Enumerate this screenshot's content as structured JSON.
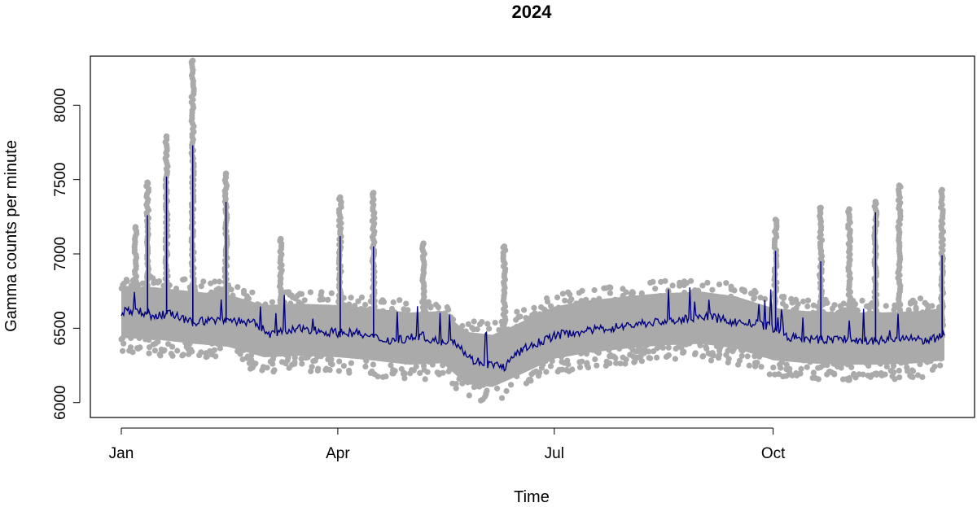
{
  "chart_data": {
    "type": "scatter",
    "title": "2024",
    "xlabel": "Time",
    "ylabel": "Gamma counts per minute",
    "x_domain": [
      "2024-01-01",
      "2024-12-12"
    ],
    "ylim": [
      5900,
      8330
    ],
    "x_ticks": [
      {
        "date": "2024-01-01",
        "label": "Jan"
      },
      {
        "date": "2024-04-01",
        "label": "Apr"
      },
      {
        "date": "2024-07-01",
        "label": "Jul"
      },
      {
        "date": "2024-10-01",
        "label": "Oct"
      }
    ],
    "y_ticks": [
      6000,
      6500,
      7000,
      7500,
      8000
    ],
    "grid": false,
    "legend": "none",
    "series": [
      {
        "style": "points",
        "color": "#aaaaaa",
        "baseline": [
          [
            "2024-01-01",
            6600
          ],
          [
            "2024-01-15",
            6590
          ],
          [
            "2024-02-01",
            6560
          ],
          [
            "2024-02-15",
            6540
          ],
          [
            "2024-03-01",
            6470
          ],
          [
            "2024-03-15",
            6480
          ],
          [
            "2024-04-01",
            6470
          ],
          [
            "2024-04-15",
            6450
          ],
          [
            "2024-05-01",
            6420
          ],
          [
            "2024-05-15",
            6430
          ],
          [
            "2024-05-25",
            6290
          ],
          [
            "2024-06-05",
            6270
          ],
          [
            "2024-06-15",
            6340
          ],
          [
            "2024-07-01",
            6460
          ],
          [
            "2024-07-15",
            6500
          ],
          [
            "2024-08-01",
            6530
          ],
          [
            "2024-08-15",
            6550
          ],
          [
            "2024-09-01",
            6560
          ],
          [
            "2024-09-15",
            6530
          ],
          [
            "2024-10-01",
            6450
          ],
          [
            "2024-10-15",
            6430
          ],
          [
            "2024-11-01",
            6420
          ],
          [
            "2024-11-15",
            6420
          ],
          [
            "2024-12-01",
            6430
          ],
          [
            "2024-12-12",
            6450
          ]
        ],
        "spread": 300,
        "spikes": [
          [
            "2024-01-07",
            7180
          ],
          [
            "2024-01-12",
            7480
          ],
          [
            "2024-01-20",
            7790
          ],
          [
            "2024-01-31",
            8300
          ],
          [
            "2024-02-14",
            7540
          ],
          [
            "2024-03-08",
            7100
          ],
          [
            "2024-04-02",
            7380
          ],
          [
            "2024-04-16",
            7410
          ],
          [
            "2024-05-07",
            7070
          ],
          [
            "2024-06-10",
            7050
          ],
          [
            "2024-10-02",
            7230
          ],
          [
            "2024-10-21",
            7310
          ],
          [
            "2024-11-02",
            7300
          ],
          [
            "2024-11-13",
            7350
          ],
          [
            "2024-11-23",
            7460
          ],
          [
            "2024-12-11",
            7430
          ]
        ]
      },
      {
        "style": "line",
        "color": "#000080",
        "values": [
          [
            "2024-01-01",
            6610
          ],
          [
            "2024-01-08",
            6620
          ],
          [
            "2024-01-15",
            6580
          ],
          [
            "2024-01-22",
            6600
          ],
          [
            "2024-01-29",
            6540
          ],
          [
            "2024-02-05",
            6550
          ],
          [
            "2024-02-12",
            6560
          ],
          [
            "2024-02-19",
            6550
          ],
          [
            "2024-02-26",
            6530
          ],
          [
            "2024-03-04",
            6460
          ],
          [
            "2024-03-11",
            6480
          ],
          [
            "2024-03-18",
            6500
          ],
          [
            "2024-03-25",
            6480
          ],
          [
            "2024-04-01",
            6470
          ],
          [
            "2024-04-08",
            6470
          ],
          [
            "2024-04-15",
            6440
          ],
          [
            "2024-04-22",
            6420
          ],
          [
            "2024-04-29",
            6430
          ],
          [
            "2024-05-06",
            6450
          ],
          [
            "2024-05-13",
            6410
          ],
          [
            "2024-05-20",
            6420
          ],
          [
            "2024-05-27",
            6290
          ],
          [
            "2024-06-03",
            6260
          ],
          [
            "2024-06-10",
            6240
          ],
          [
            "2024-06-17",
            6350
          ],
          [
            "2024-06-24",
            6400
          ],
          [
            "2024-07-01",
            6450
          ],
          [
            "2024-07-08",
            6470
          ],
          [
            "2024-07-15",
            6480
          ],
          [
            "2024-07-22",
            6500
          ],
          [
            "2024-07-29",
            6510
          ],
          [
            "2024-08-05",
            6530
          ],
          [
            "2024-08-12",
            6540
          ],
          [
            "2024-08-19",
            6550
          ],
          [
            "2024-08-26",
            6560
          ],
          [
            "2024-09-02",
            6580
          ],
          [
            "2024-09-09",
            6560
          ],
          [
            "2024-09-16",
            6540
          ],
          [
            "2024-09-23",
            6530
          ],
          [
            "2024-09-30",
            6510
          ],
          [
            "2024-10-07",
            6440
          ],
          [
            "2024-10-14",
            6430
          ],
          [
            "2024-10-21",
            6420
          ],
          [
            "2024-10-28",
            6430
          ],
          [
            "2024-11-04",
            6420
          ],
          [
            "2024-11-11",
            6410
          ],
          [
            "2024-11-18",
            6420
          ],
          [
            "2024-11-25",
            6430
          ],
          [
            "2024-12-02",
            6420
          ],
          [
            "2024-12-09",
            6430
          ],
          [
            "2024-12-12",
            6450
          ]
        ],
        "spikes": [
          [
            "2024-01-12",
            7260
          ],
          [
            "2024-01-20",
            7520
          ],
          [
            "2024-01-31",
            7730
          ],
          [
            "2024-02-14",
            7350
          ],
          [
            "2024-04-02",
            7120
          ],
          [
            "2024-04-16",
            7050
          ],
          [
            "2024-10-02",
            7020
          ],
          [
            "2024-10-21",
            6950
          ],
          [
            "2024-11-13",
            7280
          ],
          [
            "2024-12-11",
            6990
          ]
        ]
      }
    ]
  }
}
